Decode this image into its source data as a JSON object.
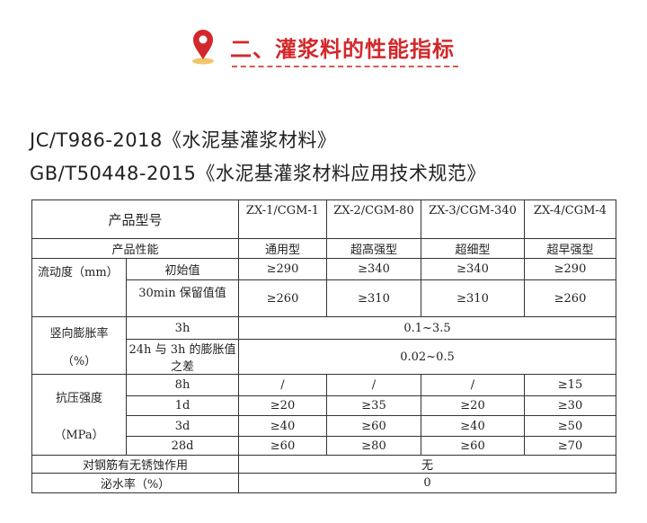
{
  "heading": {
    "title": "二、灌浆料的性能指标",
    "icon": "location-pin-icon",
    "color": "#d3282b"
  },
  "standards": [
    "JC/T986-2018《水泥基灌浆材料》",
    "GB/T50448-2015《水泥基灌浆材料应用技术规范》"
  ],
  "table": {
    "model_label": "产品型号",
    "models": [
      "ZX-1/CGM-1",
      "ZX-2/CGM-80",
      "ZX-3/CGM-340",
      "ZX-4/CGM-4"
    ],
    "perf_label": "产品性能",
    "types": [
      "通用型",
      "超高强型",
      "超细型",
      "超早强型"
    ],
    "flow": {
      "label": "流动度（mm）",
      "rows": [
        {
          "name": "初始值",
          "values": [
            "≥290",
            "≥340",
            "≥340",
            "≥290"
          ]
        },
        {
          "name": "30min 保留值值",
          "values": [
            "≥260",
            "≥310",
            "≥310",
            "≥260"
          ]
        }
      ]
    },
    "expansion": {
      "label1": "竖向膨胀率",
      "label2": "（%）",
      "rows": [
        {
          "name": "3h",
          "value": "0.1~3.5"
        },
        {
          "name": "24h 与 3h 的膨胀值之差",
          "value": "0.02~0.5"
        }
      ]
    },
    "strength": {
      "label1": "抗压强度",
      "label2": "（MPa）",
      "rows": [
        {
          "name": "8h",
          "values": [
            "/",
            "/",
            "/",
            "≥15"
          ]
        },
        {
          "name": "1d",
          "values": [
            "≥20",
            "≥35",
            "≥20",
            "≥30"
          ]
        },
        {
          "name": "3d",
          "values": [
            "≥40",
            "≥60",
            "≥40",
            "≥50"
          ]
        },
        {
          "name": "28d",
          "values": [
            "≥60",
            "≥80",
            "≥60",
            "≥70"
          ]
        }
      ]
    },
    "rust": {
      "label": "对钢筋有无锈蚀作用",
      "value": "无"
    },
    "bleed": {
      "label": "泌水率（%）",
      "value": "0"
    }
  }
}
